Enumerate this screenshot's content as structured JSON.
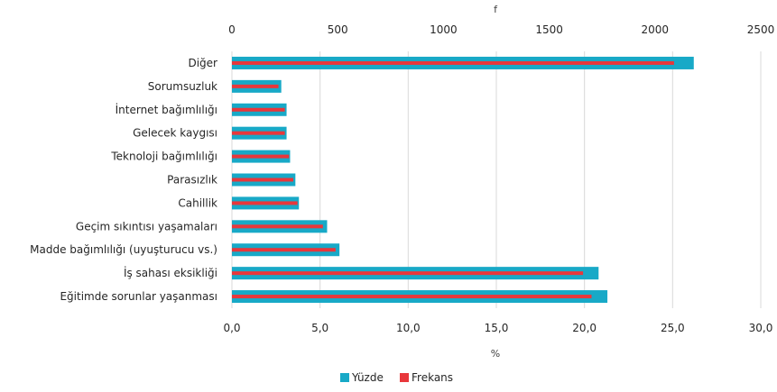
{
  "chart_data": {
    "type": "bar",
    "orientation": "horizontal",
    "categories": [
      "Diğer",
      "Sorumsuzluk",
      "İnternet bağımlılığı",
      "Gelecek kaygısı",
      "Teknoloji bağımlılığı",
      "Parasızlık",
      "Cahillik",
      "Geçim sıkıntısı yaşamaları",
      "Madde bağımlılığı (uyuşturucu vs.)",
      "İş sahası eksikliği",
      "Eğitimde sorunlar yaşanması"
    ],
    "series": [
      {
        "name": "Yüzde",
        "axis": "bottom",
        "color": "#18A9C7",
        "values": [
          26.2,
          2.8,
          3.1,
          3.1,
          3.3,
          3.6,
          3.8,
          5.4,
          6.1,
          20.8,
          21.3
        ]
      },
      {
        "name": "Frekans",
        "axis": "top",
        "color": "#E8373B",
        "values": [
          2090,
          220,
          250,
          250,
          270,
          290,
          310,
          430,
          490,
          1660,
          1700
        ]
      }
    ],
    "bottom_axis": {
      "title": "%",
      "min": 0,
      "max": 30,
      "ticks": [
        "0,0",
        "5,0",
        "10,0",
        "15,0",
        "20,0",
        "25,0",
        "30,0"
      ]
    },
    "top_axis": {
      "title": "f",
      "min": 0,
      "max": 2500,
      "ticks": [
        "0",
        "500",
        "1000",
        "1500",
        "2000",
        "2500"
      ]
    },
    "grid": "vertical",
    "legend_position": "bottom"
  }
}
